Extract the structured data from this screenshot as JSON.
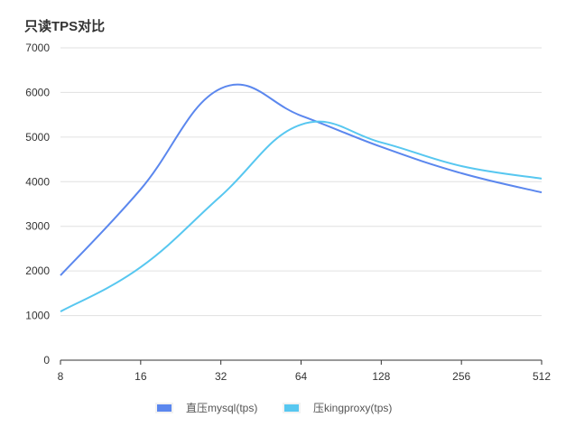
{
  "chart_data": {
    "type": "line",
    "title": "只读TPS对比",
    "xlabel": "",
    "ylabel": "",
    "categories": [
      "8",
      "16",
      "32",
      "64",
      "128",
      "256",
      "512"
    ],
    "y_ticks": [
      "0",
      "1000",
      "2000",
      "3000",
      "4000",
      "5000",
      "6000",
      "7000"
    ],
    "ylim": [
      0,
      7000
    ],
    "grid": true,
    "legend_position": "bottom",
    "series": [
      {
        "name": "直压mysql(tps)",
        "color": "#5b87ee",
        "values": [
          1900,
          3830,
          6090,
          5480,
          4780,
          4190,
          3760
        ]
      },
      {
        "name": "压kingproxy(tps)",
        "color": "#57c7f0",
        "values": [
          1090,
          2085,
          3680,
          5280,
          4880,
          4350,
          4070
        ]
      }
    ]
  }
}
